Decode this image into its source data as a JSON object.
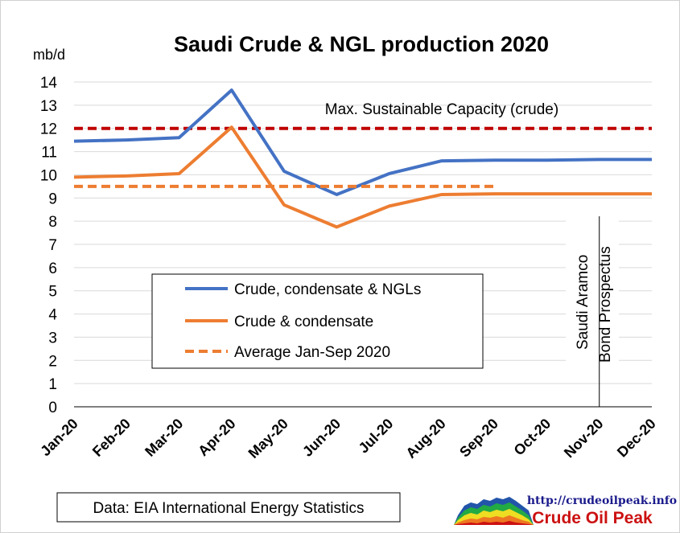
{
  "chart_data": {
    "type": "line",
    "title": "Saudi Crude & NGL production 2020",
    "ylabel": "mb/d",
    "ylim": [
      0,
      14
    ],
    "yticks": [
      "0",
      "1",
      "2",
      "3",
      "4",
      "5",
      "6",
      "7",
      "8",
      "9",
      "10",
      "11",
      "12",
      "13",
      "14"
    ],
    "categories": [
      "Jan-20",
      "Feb-20",
      "Mar-20",
      "Apr-20",
      "May-20",
      "Jun-20",
      "Jul-20",
      "Aug-20",
      "Sep-20",
      "Oct-20",
      "Nov-20",
      "Dec-20"
    ],
    "grid": true,
    "legend_position": "bottom-left",
    "series": [
      {
        "name": "Crude, condensate & NGLs",
        "color": "#4472c4",
        "style": "solid",
        "values": [
          11.45,
          11.5,
          11.6,
          13.65,
          10.15,
          9.15,
          10.05,
          10.6,
          10.63,
          10.63,
          10.66,
          10.66
        ]
      },
      {
        "name": "Crude & condensate",
        "color": "#ed7d31",
        "style": "solid",
        "values": [
          9.9,
          9.95,
          10.05,
          12.05,
          8.7,
          7.75,
          8.65,
          9.15,
          9.18,
          9.18,
          9.18,
          9.18
        ]
      },
      {
        "name": "Average Jan-Sep 2020",
        "color": "#ed7d31",
        "style": "dashed",
        "values": [
          9.5,
          9.5,
          9.5,
          9.5,
          9.5,
          9.5,
          9.5,
          9.5,
          9.5,
          null,
          null,
          null
        ]
      }
    ],
    "reference_line": {
      "label": "Max. Sustainable Capacity (crude)",
      "value": 12,
      "color": "#c00000",
      "style": "dashed"
    },
    "vertical_annotation": {
      "lines": [
        "Saudi Aramco",
        "Bond Prospectus"
      ],
      "at": "Nov-20"
    }
  },
  "footer": {
    "source": "Data: EIA International Energy Statistics",
    "url": "http://crudeoilpeak.info",
    "brand": "Crude Oil Peak"
  },
  "icons": {
    "logo": "oil-production-area-chart-icon"
  }
}
